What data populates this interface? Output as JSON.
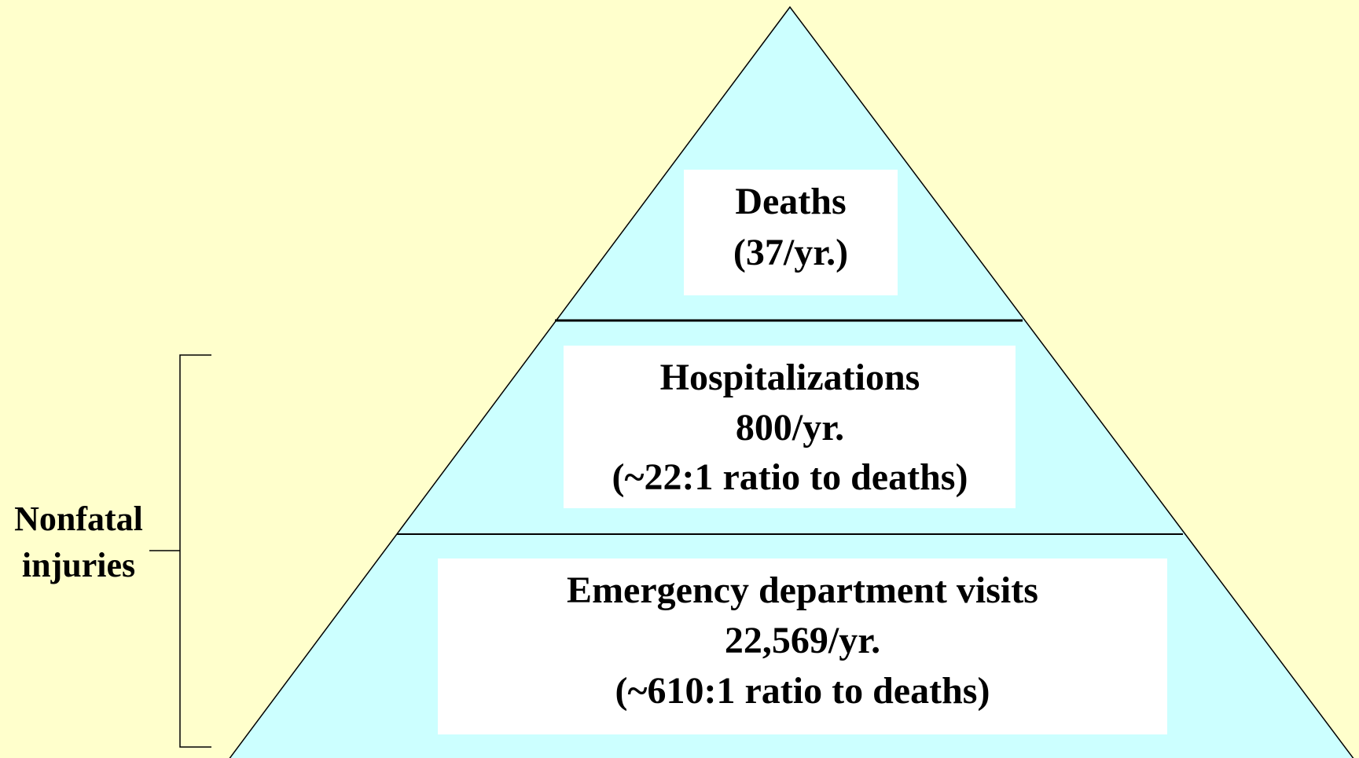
{
  "pyramid": {
    "levels": [
      {
        "lines": [
          "Deaths",
          "(37/yr.)"
        ]
      },
      {
        "lines": [
          "Hospitalizations",
          "800/yr.",
          "(~22:1 ratio to deaths)"
        ]
      },
      {
        "lines": [
          "Emergency department visits",
          "22,569/yr.",
          "(~610:1 ratio to deaths)"
        ]
      }
    ],
    "bracket_label": [
      "Nonfatal",
      "injuries"
    ]
  }
}
